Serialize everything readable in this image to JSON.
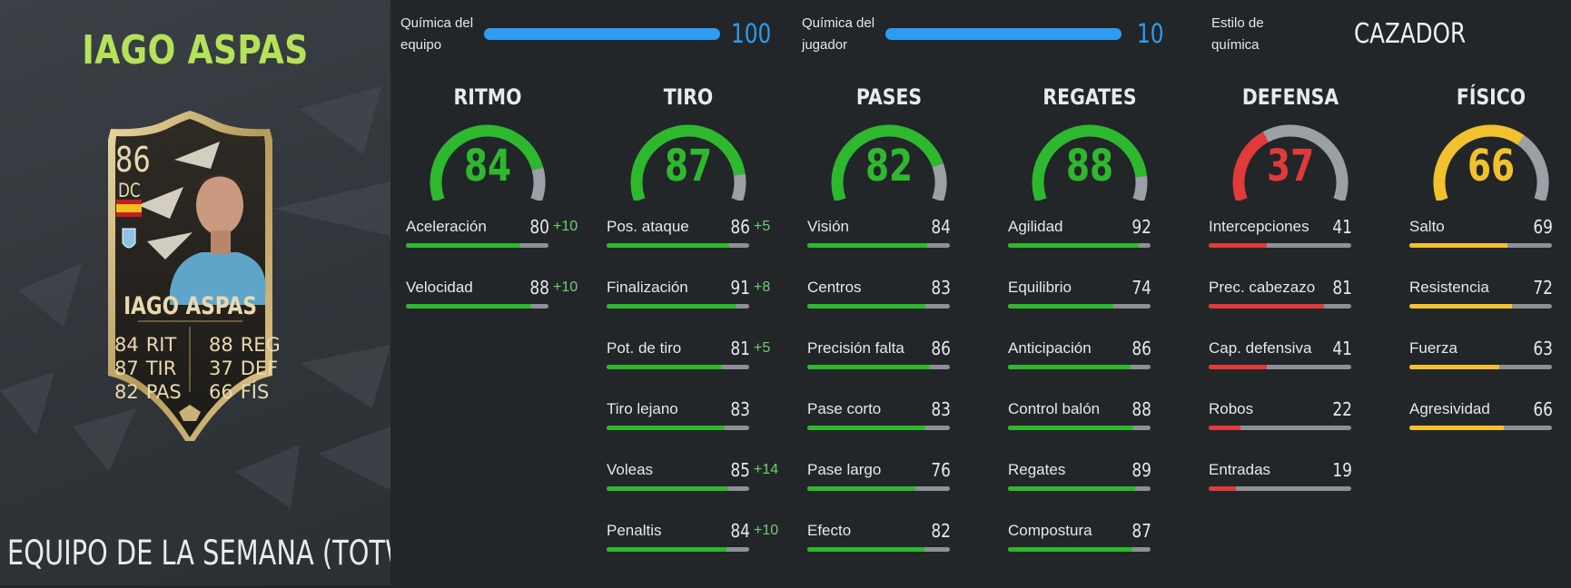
{
  "player": {
    "name": "IAGO ASPAS",
    "card": {
      "rating": "86",
      "position": "DC",
      "name": "IAGO ASPAS",
      "stats_left": [
        {
          "value": "84",
          "label": "RIT"
        },
        {
          "value": "87",
          "label": "TIR"
        },
        {
          "value": "82",
          "label": "PAS"
        }
      ],
      "stats_right": [
        {
          "value": "88",
          "label": "REG"
        },
        {
          "value": "37",
          "label": "DEF"
        },
        {
          "value": "66",
          "label": "FÍS"
        }
      ]
    },
    "footer": "EQUIPO DE LA SEMANA (TOTW)"
  },
  "chemistry": {
    "team": {
      "label_line1": "Química del",
      "label_line2": "equipo",
      "value": "100",
      "fraction": 1.0
    },
    "player": {
      "label_line1": "Química del",
      "label_line2": "jugador",
      "value": "10",
      "fraction": 1.0
    },
    "style": {
      "label_line1": "Estilo de",
      "label_line2": "química",
      "value": "CAZADOR"
    }
  },
  "colors": {
    "green": "#2eb82e",
    "red": "#e13a3a",
    "yellow": "#f2c12e",
    "blue": "#2d9cf1",
    "gauge_track": "#9aa0a6"
  },
  "categories": [
    {
      "title": "RITMO",
      "value": "84",
      "color": "green",
      "subs": [
        {
          "label": "Aceleración",
          "value": "80",
          "boost": "+10"
        },
        {
          "label": "Velocidad",
          "value": "88",
          "boost": "+10"
        }
      ]
    },
    {
      "title": "TIRO",
      "value": "87",
      "color": "green",
      "subs": [
        {
          "label": "Pos. ataque",
          "value": "86",
          "boost": "+5"
        },
        {
          "label": "Finalización",
          "value": "91",
          "boost": "+8"
        },
        {
          "label": "Pot. de tiro",
          "value": "81",
          "boost": "+5"
        },
        {
          "label": "Tiro lejano",
          "value": "83",
          "boost": ""
        },
        {
          "label": "Voleas",
          "value": "85",
          "boost": "+14"
        },
        {
          "label": "Penaltis",
          "value": "84",
          "boost": "+10"
        }
      ]
    },
    {
      "title": "PASES",
      "value": "82",
      "color": "green",
      "subs": [
        {
          "label": "Visión",
          "value": "84",
          "boost": ""
        },
        {
          "label": "Centros",
          "value": "83",
          "boost": ""
        },
        {
          "label": "Precisión falta",
          "value": "86",
          "boost": ""
        },
        {
          "label": "Pase corto",
          "value": "83",
          "boost": ""
        },
        {
          "label": "Pase largo",
          "value": "76",
          "boost": ""
        },
        {
          "label": "Efecto",
          "value": "82",
          "boost": ""
        }
      ]
    },
    {
      "title": "REGATES",
      "value": "88",
      "color": "green",
      "subs": [
        {
          "label": "Agilidad",
          "value": "92",
          "boost": ""
        },
        {
          "label": "Equilibrio",
          "value": "74",
          "boost": ""
        },
        {
          "label": "Anticipación",
          "value": "86",
          "boost": ""
        },
        {
          "label": "Control balón",
          "value": "88",
          "boost": ""
        },
        {
          "label": "Regates",
          "value": "89",
          "boost": ""
        },
        {
          "label": "Compostura",
          "value": "87",
          "boost": ""
        }
      ]
    },
    {
      "title": "DEFENSA",
      "value": "37",
      "color": "red",
      "subs": [
        {
          "label": "Intercepciones",
          "value": "41",
          "boost": ""
        },
        {
          "label": "Prec. cabezazo",
          "value": "81",
          "boost": ""
        },
        {
          "label": "Cap. defensiva",
          "value": "41",
          "boost": ""
        },
        {
          "label": "Robos",
          "value": "22",
          "boost": ""
        },
        {
          "label": "Entradas",
          "value": "19",
          "boost": ""
        }
      ]
    },
    {
      "title": "FÍSICO",
      "value": "66",
      "color": "yellow",
      "subs": [
        {
          "label": "Salto",
          "value": "69",
          "boost": ""
        },
        {
          "label": "Resistencia",
          "value": "72",
          "boost": ""
        },
        {
          "label": "Fuerza",
          "value": "63",
          "boost": ""
        },
        {
          "label": "Agresividad",
          "value": "66",
          "boost": ""
        }
      ]
    }
  ]
}
